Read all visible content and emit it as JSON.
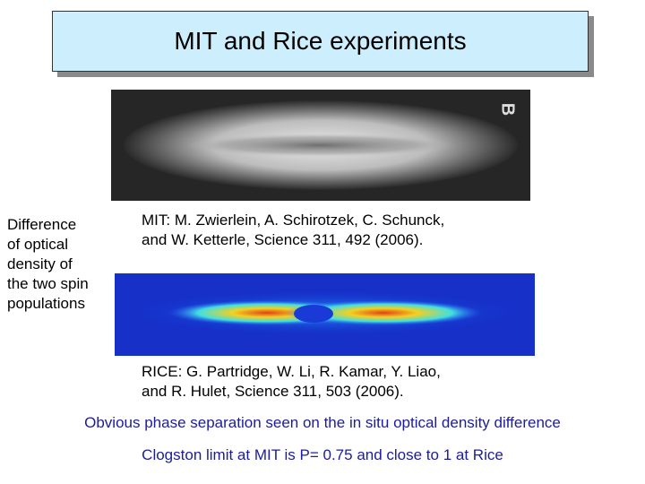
{
  "slide": {
    "title": "MIT and Rice experiments",
    "mit_image": {
      "label": "B"
    },
    "side_caption": [
      "Difference",
      "of optical",
      "density of",
      "the two spin",
      "populations"
    ],
    "mit_citation": [
      "MIT: M. Zwierlein, A. Schirotzek, C. Schunck,",
      "and W. Ketterle, Science 311, 492 (2006)."
    ],
    "rice_citation": [
      "RICE: G. Partridge, W. Li, R. Kamar, Y. Liao,",
      "and R. Hulet, Science 311, 503 (2006)."
    ],
    "notes": [
      "Obvious phase separation seen on the in situ optical density difference",
      "Clogston limit at MIT is P= 0.75 and close to 1 at Rice"
    ]
  }
}
